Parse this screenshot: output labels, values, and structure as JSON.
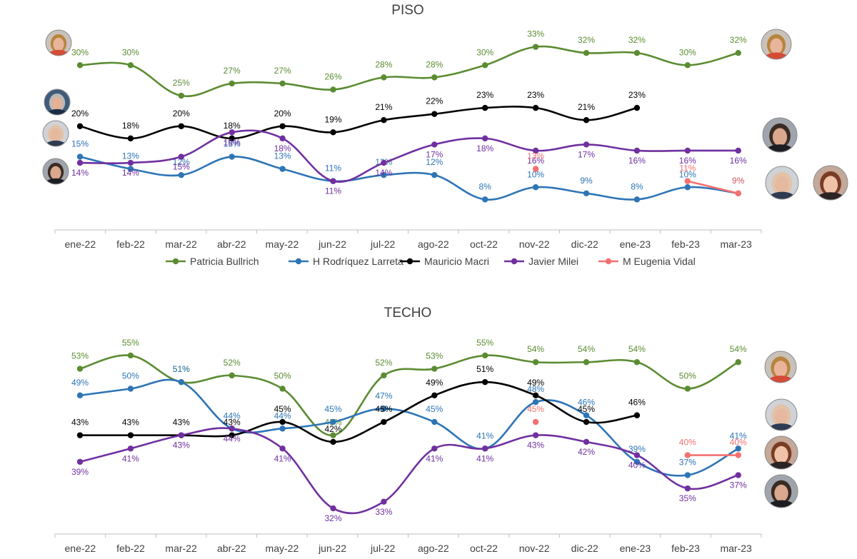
{
  "chart_data": [
    {
      "type": "line",
      "title": "PISO",
      "categories": [
        "ene-22",
        "feb-22",
        "mar-22",
        "abr-22",
        "may-22",
        "jun-22",
        "jul-22",
        "ago-22",
        "oct-22",
        "nov-22",
        "dic-22",
        "ene-23",
        "feb-23",
        "mar-23"
      ],
      "value_format": "percent",
      "series": [
        {
          "name": "Patricia Bullrich",
          "color": "#5b8c32",
          "values": [
            30,
            30,
            25,
            27,
            27,
            26,
            28,
            28,
            30,
            33,
            32,
            32,
            30,
            32
          ]
        },
        {
          "name": "H Rodríquez Larreta",
          "color": "#2e75b6",
          "values": [
            15,
            13,
            12,
            15,
            13,
            11,
            12,
            12,
            8,
            10,
            9,
            8,
            10,
            9
          ]
        },
        {
          "name": "Mauricio Macri",
          "color": "#000000",
          "values": [
            20,
            18,
            20,
            18,
            20,
            19,
            21,
            22,
            23,
            23,
            21,
            23,
            null,
            null
          ]
        },
        {
          "name": "Javier Milei",
          "color": "#7030a0",
          "values": [
            14,
            14,
            15,
            19,
            18,
            11,
            14,
            17,
            18,
            16,
            17,
            16,
            16,
            16
          ]
        },
        {
          "name": "M Eugenia Vidal",
          "color": "#f47070",
          "values": [
            null,
            null,
            null,
            null,
            null,
            null,
            null,
            null,
            null,
            13,
            null,
            null,
            11,
            9
          ]
        }
      ],
      "legend_position": "bottom"
    },
    {
      "type": "line",
      "title": "TECHO",
      "categories": [
        "ene-22",
        "feb-22",
        "mar-22",
        "abr-22",
        "may-22",
        "jun-22",
        "jul-22",
        "ago-22",
        "oct-22",
        "nov-22",
        "dic-22",
        "ene-23",
        "feb-23",
        "mar-23"
      ],
      "value_format": "percent",
      "series": [
        {
          "name": "Patricia Bullrich",
          "color": "#5b8c32",
          "values": [
            53,
            55,
            51,
            52,
            50,
            43,
            52,
            53,
            55,
            54,
            54,
            54,
            50,
            54
          ]
        },
        {
          "name": "H Rodríquez Larreta",
          "color": "#2e75b6",
          "values": [
            49,
            50,
            51,
            44,
            44,
            45,
            47,
            45,
            41,
            48,
            46,
            39,
            37,
            41
          ]
        },
        {
          "name": "Mauricio Macri",
          "color": "#000000",
          "values": [
            43,
            43,
            43,
            43,
            45,
            42,
            45,
            49,
            51,
            49,
            45,
            46,
            null,
            null
          ]
        },
        {
          "name": "Javier Milei",
          "color": "#7030a0",
          "values": [
            39,
            41,
            43,
            44,
            41,
            32,
            33,
            41,
            41,
            43,
            42,
            40,
            35,
            37
          ]
        },
        {
          "name": "M Eugenia Vidal",
          "color": "#f47070",
          "values": [
            null,
            null,
            null,
            null,
            null,
            null,
            null,
            null,
            null,
            45,
            null,
            null,
            40,
            40
          ]
        }
      ]
    }
  ],
  "avatars": {
    "top": [
      "Patricia Bullrich",
      "Mauricio Macri",
      "H Rodríquez Larreta",
      "Javier Milei",
      "Patricia Bullrich",
      "Javier Milei",
      "H Rodríquez Larreta",
      "M Eugenia Vidal"
    ],
    "bottom": [
      "Patricia Bullrich",
      "H Rodríquez Larreta",
      "M Eugenia Vidal",
      "Javier Milei"
    ]
  }
}
